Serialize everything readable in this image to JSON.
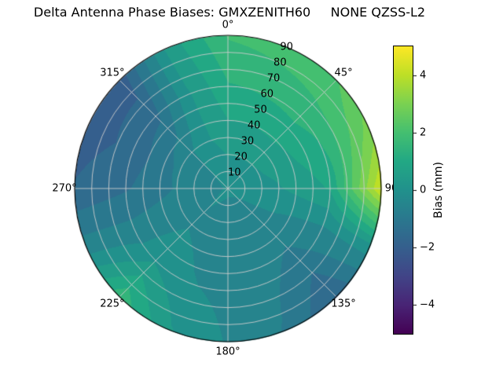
{
  "title": "Delta Antenna Phase Biases: GMXZENITH60     NONE QZSS-L2",
  "chart_data": {
    "type": "heatmap",
    "projection": "polar",
    "title": "Delta Antenna Phase Biases: GMXZENITH60     NONE QZSS-L2",
    "angular_tick_labels": [
      "0°",
      "45°",
      "90",
      "135°",
      "180°",
      "225°",
      "270°",
      "315°"
    ],
    "angular_tick_degrees": [
      0,
      45,
      90,
      135,
      180,
      225,
      270,
      315
    ],
    "radial_tick_labels": [
      "10",
      "20",
      "30",
      "40",
      "50",
      "60",
      "70",
      "80",
      "90"
    ],
    "radial_tick_values": [
      10,
      20,
      30,
      40,
      50,
      60,
      70,
      80,
      90
    ],
    "radial_label_azimuth_deg": 22.5,
    "radius_max_deg": 90,
    "grid_on": true,
    "levels_step_mm": 0.5,
    "colorbar": {
      "label": "Bias (mm)",
      "tick_labels": [
        "4",
        "2",
        "0",
        "−2",
        "−4"
      ],
      "tick_values": [
        4,
        2,
        0,
        -2,
        -4
      ],
      "vmin": -5,
      "vmax": 5,
      "colormap": "viridis",
      "viridis_stops": [
        "#440154",
        "#482475",
        "#414487",
        "#355f8d",
        "#2a788e",
        "#21918c",
        "#22a884",
        "#44bf70",
        "#7ad151",
        "#bddf26",
        "#fde725"
      ]
    },
    "grid": {
      "azimuth_deg": [
        0,
        22.5,
        45,
        67.5,
        90,
        112.5,
        135,
        157.5,
        180,
        202.5,
        225,
        247.5,
        270,
        292.5,
        315,
        337.5
      ],
      "zenith_deg": [
        0,
        30,
        60,
        90
      ],
      "bias_mm": [
        [
          -0.2,
          -0.2,
          -0.2,
          -0.2,
          -0.2,
          -0.2,
          -0.2,
          -0.2,
          -0.2,
          -0.2,
          -0.2,
          -0.2,
          -0.2,
          -0.2,
          -0.2,
          -0.2
        ],
        [
          0.5,
          0.5,
          0.5,
          0.4,
          0.2,
          -0.2,
          -0.4,
          -0.5,
          -0.5,
          -0.4,
          -0.3,
          -0.5,
          -0.7,
          -0.6,
          -0.3,
          0.2
        ],
        [
          1.2,
          1.3,
          1.4,
          1.2,
          0.8,
          -0.3,
          -1.0,
          -0.6,
          -0.4,
          -0.2,
          0.2,
          -0.6,
          -1.3,
          -1.6,
          -1.4,
          0.2
        ],
        [
          1.8,
          2.0,
          2.2,
          3.0,
          4.3,
          0.0,
          -1.8,
          -0.8,
          -0.3,
          0.3,
          1.6,
          -0.5,
          -1.7,
          -2.0,
          -2.1,
          0.5
        ]
      ]
    },
    "plot_colors": {
      "grid_line": "rgba(204,204,204,0.9)",
      "outline": "#000000",
      "background": "#ffffff"
    }
  }
}
